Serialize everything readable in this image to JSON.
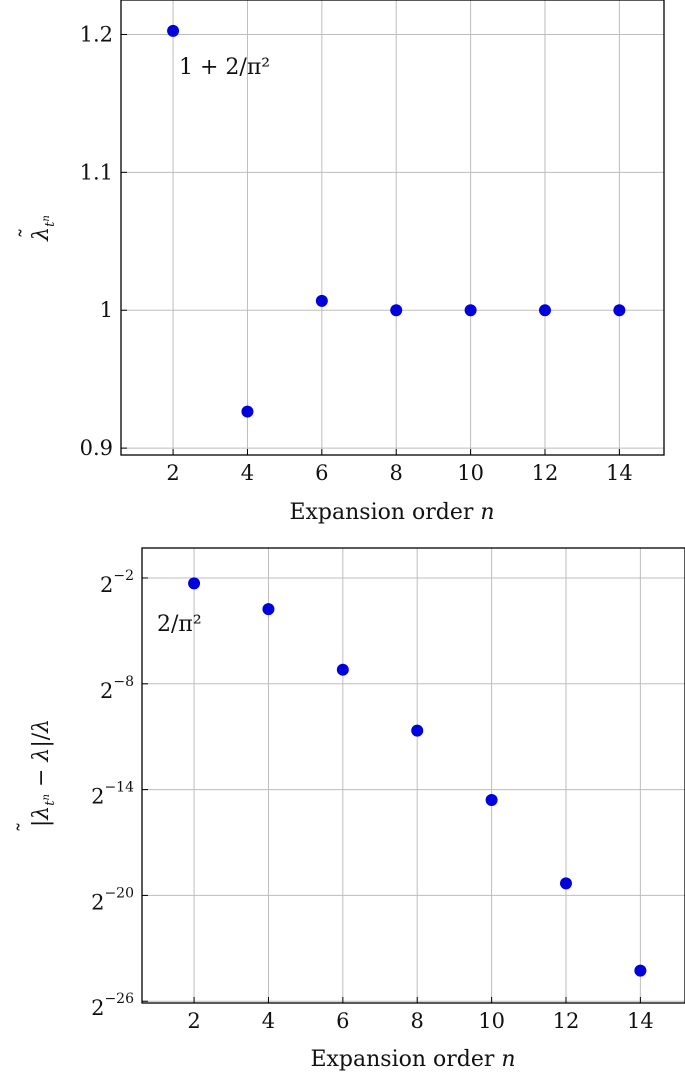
{
  "chart_data": [
    {
      "type": "scatter",
      "x": [
        2,
        4,
        6,
        8,
        10,
        12,
        14
      ],
      "series": [
        {
          "values": [
            1.2026,
            0.9265,
            1.0068,
            1.0,
            1.0,
            1.0,
            1.0
          ],
          "color": "#0000dd"
        }
      ],
      "xticks": [
        "2",
        "4",
        "6",
        "8",
        "10",
        "12",
        "14"
      ],
      "yticks": [
        "0.9",
        "1",
        "1.1",
        "1.2"
      ],
      "xlim": [
        0.6,
        15.2
      ],
      "ylim": [
        0.895,
        1.225
      ],
      "xlabel": "Expansion order n",
      "ylabel": "λ̃_{t^n}",
      "annotation": "1 + 2/π²",
      "grid": true
    },
    {
      "type": "scatter",
      "yscale": "log2",
      "x": [
        2,
        4,
        6,
        8,
        10,
        12,
        14
      ],
      "series": [
        {
          "values": [
            0.2026,
            0.0735,
            0.0068,
            0.00062,
            4.06e-05,
            1.53e-06,
            4.97e-08
          ],
          "color": "#0000dd"
        }
      ],
      "xticks": [
        "2",
        "4",
        "6",
        "8",
        "10",
        "12",
        "14"
      ],
      "yticks": [
        {
          "base": "2",
          "exp": "−2",
          "value": 0.25
        },
        {
          "base": "2",
          "exp": "−8",
          "value": 0.00390625
        },
        {
          "base": "2",
          "exp": "−14",
          "value": 6.103515625e-05
        },
        {
          "base": "2",
          "exp": "−20",
          "value": 9.5367431640625e-07
        },
        {
          "base": "2",
          "exp": "−26",
          "value": 1.49011611938e-08
        }
      ],
      "xlim": [
        0.6,
        15.2
      ],
      "ylim_log2": [
        -26.1,
        -0.3
      ],
      "xlabel": "Expansion order n",
      "ylabel": "|λ̃_{t^n} − λ|/λ",
      "annotation": "2/π²",
      "grid": true
    }
  ]
}
